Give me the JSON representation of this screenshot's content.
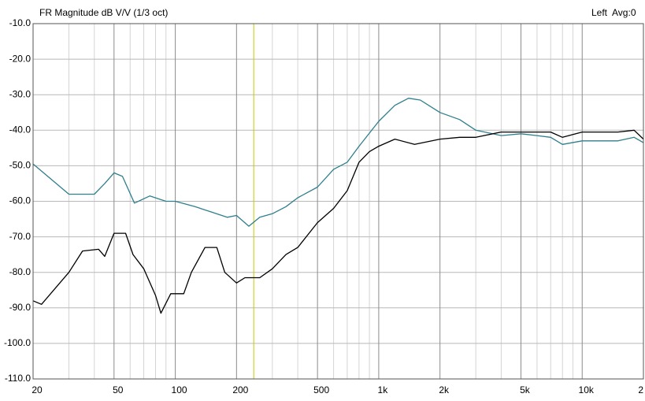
{
  "chart_data": {
    "type": "line",
    "title": "FR Magnitude dB V/V (1/3 oct)",
    "annotation": "Left  Avg:0",
    "x_scale": "log",
    "grid": true,
    "xlim": [
      20,
      20000
    ],
    "ylim": [
      -110,
      -10
    ],
    "xticks": [
      20,
      50,
      100,
      200,
      500,
      {
        "value": 1000,
        "label": "1k"
      },
      {
        "value": 2000,
        "label": "2k"
      },
      {
        "value": 5000,
        "label": "5k"
      },
      {
        "value": 10000,
        "label": "10k"
      },
      {
        "value": 20000,
        "label": "2"
      }
    ],
    "xminorticks": [
      30,
      40,
      60,
      70,
      80,
      90,
      300,
      400,
      600,
      700,
      800,
      900,
      3000,
      4000,
      6000,
      7000,
      8000,
      9000
    ],
    "yticks": [
      {
        "value": -10,
        "label": "-10.0"
      },
      {
        "value": -20,
        "label": "-20.0"
      },
      {
        "value": -30,
        "label": "-30.0"
      },
      {
        "value": -40,
        "label": "-40.0"
      },
      {
        "value": -50,
        "label": "-50.0"
      },
      {
        "value": -60,
        "label": "-60.0"
      },
      {
        "value": -70,
        "label": "-70.0"
      },
      {
        "value": -80,
        "label": "-80.0"
      },
      {
        "value": -90,
        "label": "-90.0"
      },
      {
        "value": -100,
        "label": "-100.0"
      },
      {
        "value": -110,
        "label": "-110.0"
      }
    ],
    "cursor": 243,
    "cursor_color": "#c8c800",
    "series": [
      {
        "color": "#2e7f8c",
        "x": [
          20,
          30,
          40,
          45,
          50,
          55,
          63,
          75,
          90,
          100,
          125,
          150,
          180,
          200,
          230,
          260,
          300,
          350,
          400,
          500,
          600,
          700,
          800,
          1000,
          1200,
          1400,
          1600,
          2000,
          2500,
          3000,
          4000,
          5000,
          6000,
          7000,
          8000,
          10000,
          15000,
          18000,
          20000
        ],
        "values": [
          -49.5,
          -58,
          -58,
          -55,
          -52,
          -53,
          -60.5,
          -58.5,
          -60,
          -60,
          -61.5,
          -63,
          -64.5,
          -64,
          -67,
          -64.5,
          -63.5,
          -61.5,
          -59,
          -56,
          -51,
          -49,
          -44.5,
          -37.5,
          -33,
          -31,
          -31.5,
          -35,
          -37,
          -40,
          -41.5,
          -41,
          -41.5,
          -42,
          -44,
          -43,
          -43,
          -42,
          -43.5
        ]
      },
      {
        "color": "#000000",
        "x": [
          20,
          22,
          30,
          35,
          42,
          45,
          50,
          57,
          62,
          70,
          80,
          85,
          95,
          110,
          120,
          140,
          160,
          175,
          200,
          220,
          260,
          300,
          350,
          400,
          500,
          600,
          700,
          800,
          900,
          1000,
          1200,
          1500,
          2000,
          2500,
          3000,
          4000,
          5000,
          7000,
          8000,
          10000,
          15000,
          18000,
          20000
        ],
        "values": [
          -88,
          -89,
          -80,
          -74,
          -73.5,
          -75.5,
          -69,
          -69,
          -75,
          -79,
          -86.5,
          -91.5,
          -86,
          -86,
          -80,
          -73,
          -73,
          -80,
          -83,
          -81.5,
          -81.5,
          -79,
          -75,
          -73,
          -66,
          -62,
          -57,
          -49,
          -46,
          -44.5,
          -42.5,
          -44,
          -42.5,
          -42,
          -42,
          -40.5,
          -40.5,
          -40.5,
          -42,
          -40.5,
          -40.5,
          -40,
          -42.5
        ]
      }
    ]
  }
}
